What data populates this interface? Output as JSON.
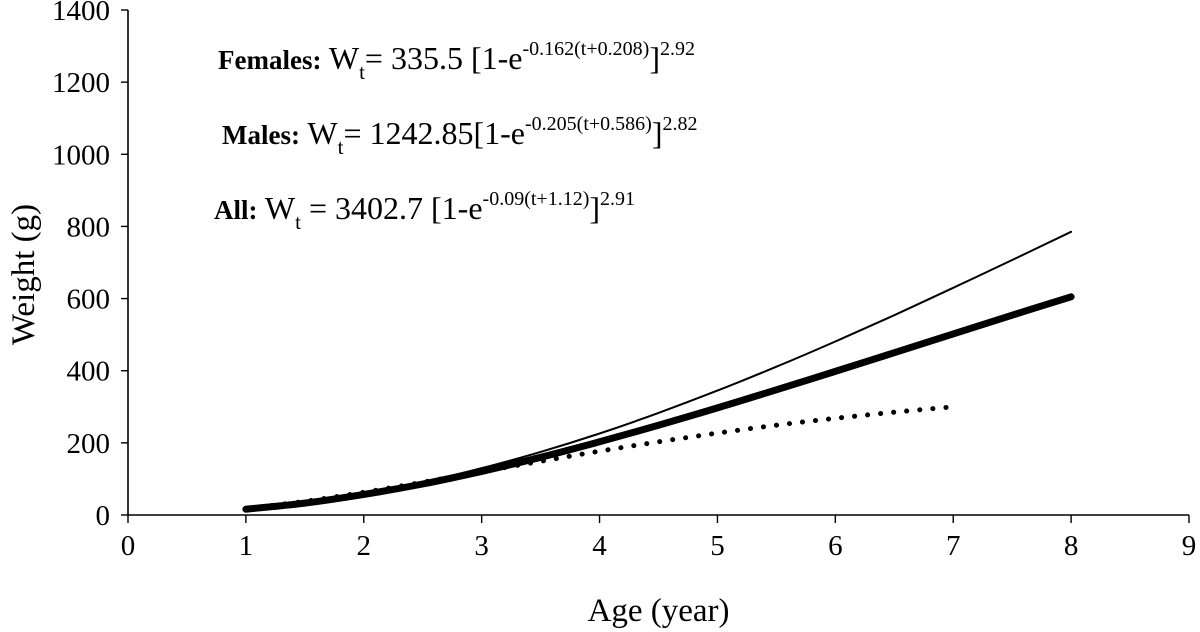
{
  "chart_data": {
    "type": "line",
    "xlabel": "Age (year)",
    "ylabel": "Weight (g)",
    "xlim": [
      0,
      9
    ],
    "ylim": [
      0,
      1400
    ],
    "xticks": [
      "0",
      "1",
      "2",
      "3",
      "4",
      "5",
      "6",
      "7",
      "8",
      "9"
    ],
    "yticks": [
      "0",
      "200",
      "400",
      "600",
      "800",
      "1000",
      "1200",
      "1400"
    ],
    "grid": false,
    "legend": "none",
    "annotations": [
      {
        "name": "Females:",
        "lhs": "W",
        "lhs_sub": "t",
        "equals": "=",
        "coef": " 335.5 [1-e",
        "exponent": "-0.162(t+0.208)",
        "close": "]",
        "power": "2.92"
      },
      {
        "name": "Males:",
        "lhs": "W",
        "lhs_sub": "t",
        "equals": "=",
        "coef": " 1242.85[1-e",
        "exponent": "-0.205(t+0.586)",
        "close": "]",
        "power": "2.82"
      },
      {
        "name": "All:",
        "lhs": "W",
        "lhs_sub": "t",
        "equals": " =",
        "coef": " 3402.7 [1-e",
        "exponent": "-0.09(t+1.12)",
        "close": "]",
        "power": "2.91"
      }
    ],
    "series": [
      {
        "style": "thin-solid",
        "color": "#000000",
        "x": [
          1,
          1.5,
          2,
          2.5,
          3,
          3.5,
          4,
          4.5,
          5,
          5.5,
          6,
          6.5,
          7,
          7.5,
          8
        ],
        "y": [
          18,
          35,
          60,
          91,
          130,
          175,
          226,
          283,
          345,
          411,
          481,
          554,
          630,
          707,
          785
        ]
      },
      {
        "style": "thick-solid",
        "color": "#000000",
        "x": [
          1,
          1.5,
          2,
          2.5,
          3,
          3.5,
          4,
          4.5,
          5,
          5.5,
          6,
          6.5,
          7,
          7.5,
          8
        ],
        "y": [
          16,
          33,
          57,
          86,
          121,
          160,
          203,
          249,
          297,
          347,
          398,
          450,
          502,
          554,
          605
        ]
      },
      {
        "style": "dotted",
        "color": "#000000",
        "x": [
          1,
          1.5,
          2,
          2.5,
          3,
          3.5,
          4,
          4.5,
          5,
          5.5,
          6,
          6.5,
          7
        ],
        "y": [
          18,
          38,
          63,
          91,
          120,
          149,
          177,
          203,
          227,
          249,
          268,
          285,
          300
        ]
      }
    ]
  }
}
